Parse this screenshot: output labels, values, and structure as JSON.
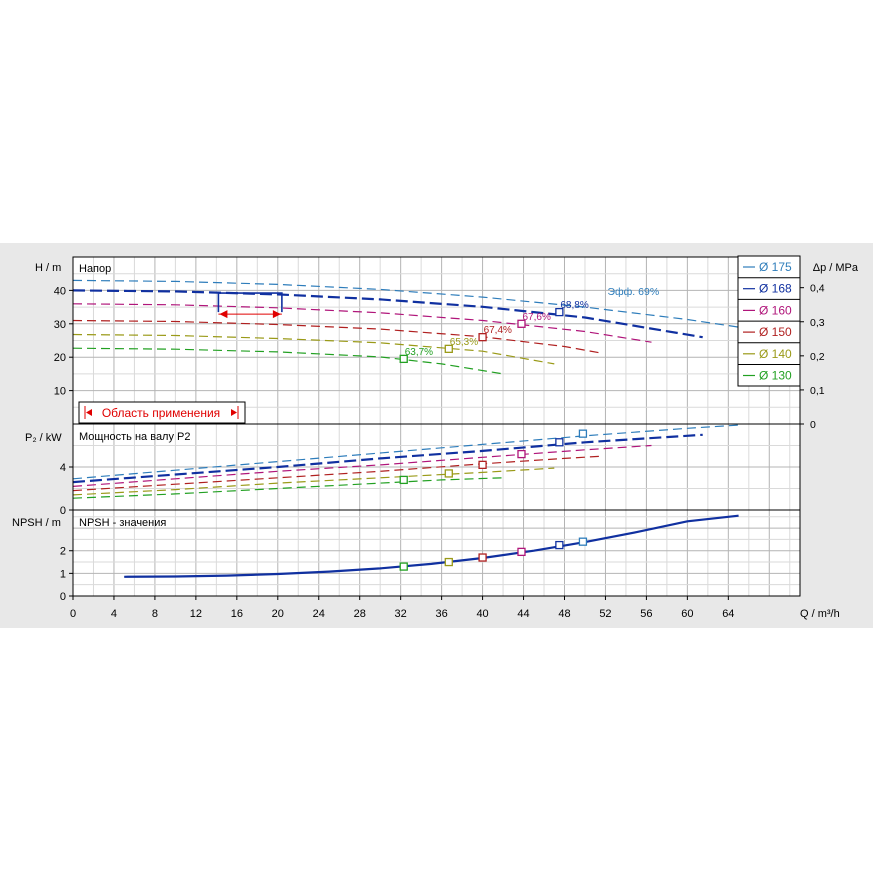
{
  "colors": {
    "background": "#e8e8e8",
    "plot_bg": "#ffffff",
    "grid": "#b4b4b4",
    "range": "#e00000"
  },
  "chart_data": [
    {
      "type": "line",
      "panel": "head",
      "title": "Напор",
      "ylabel": "H / m",
      "y2label": "Δp / MPa",
      "xlim": [
        0,
        71
      ],
      "ylim": [
        0,
        50
      ],
      "y2lim": [
        0,
        0.5
      ],
      "yticks": [
        10,
        20,
        30,
        40
      ],
      "y2ticks": [
        0,
        0.1,
        0.2,
        0.3,
        0.4
      ],
      "grid": true,
      "legend_position": "top-right",
      "eff_label": "Эфф.  69%",
      "range_label": "Область применения",
      "series": [
        {
          "name": "Ø 175",
          "color": "#2e7dbb",
          "x": [
            0,
            10,
            20,
            30,
            40,
            50,
            60,
            65
          ],
          "y": [
            43,
            42.7,
            41.8,
            40.3,
            38,
            35,
            31.3,
            29
          ]
        },
        {
          "name": "Ø 168",
          "color": "#1030a0",
          "x": [
            0,
            10,
            20,
            30,
            40,
            50,
            61.5
          ],
          "y": [
            40,
            39.7,
            38.8,
            37.3,
            35.1,
            31.9,
            26
          ]
        },
        {
          "name": "Ø 160",
          "color": "#b0157a",
          "x": [
            0,
            10,
            20,
            30,
            40,
            50,
            56.5
          ],
          "y": [
            36,
            35.7,
            34.8,
            33.3,
            31,
            27.7,
            24.5
          ]
        },
        {
          "name": "Ø 150",
          "color": "#b02020",
          "x": [
            0,
            10,
            20,
            30,
            40,
            48,
            51.5
          ],
          "y": [
            31,
            30.7,
            29.8,
            28.4,
            26.1,
            23.2,
            21.3
          ]
        },
        {
          "name": "Ø 140",
          "color": "#9a9a18",
          "x": [
            0,
            10,
            20,
            30,
            40,
            47
          ],
          "y": [
            26.8,
            26.5,
            25.6,
            24.3,
            21.8,
            18
          ]
        },
        {
          "name": "Ø 130",
          "color": "#22a022",
          "x": [
            0,
            10,
            20,
            30,
            36,
            42
          ],
          "y": [
            22.7,
            22.4,
            21.6,
            20.1,
            18,
            15
          ]
        }
      ],
      "op_points": [
        {
          "label": "63,7%",
          "x": 32.3,
          "y": 19.5,
          "color": "#22a022"
        },
        {
          "label": "65,3%",
          "x": 36.7,
          "y": 22.5,
          "color": "#9a9a18"
        },
        {
          "label": "67,4%",
          "x": 40,
          "y": 26,
          "color": "#b02020"
        },
        {
          "label": "67,6%",
          "x": 43.8,
          "y": 30,
          "color": "#b0157a"
        },
        {
          "label": "68,8%",
          "x": 47.5,
          "y": 33.5,
          "color": "#1030a0"
        }
      ]
    },
    {
      "type": "line",
      "panel": "power",
      "title": "Мощность на валу P2",
      "ylabel": "P₂ / kW",
      "ylim": [
        0,
        8
      ],
      "yticks": [
        0,
        4
      ],
      "grid": true,
      "series": [
        {
          "name": "Ø 175",
          "color": "#2e7dbb",
          "x": [
            0,
            10,
            20,
            30,
            40,
            50,
            60,
            65
          ],
          "y": [
            2.9,
            3.7,
            4.5,
            5.3,
            6.1,
            6.9,
            7.6,
            7.9
          ]
        },
        {
          "name": "Ø 168",
          "color": "#1030a0",
          "x": [
            0,
            10,
            20,
            30,
            40,
            50,
            61.5
          ],
          "y": [
            2.6,
            3.3,
            4,
            4.8,
            5.5,
            6.3,
            7
          ]
        },
        {
          "name": "Ø 160",
          "color": "#b0157a",
          "x": [
            0,
            10,
            20,
            30,
            40,
            50,
            56.5
          ],
          "y": [
            2.2,
            2.9,
            3.6,
            4.2,
            4.9,
            5.6,
            6
          ]
        },
        {
          "name": "Ø 150",
          "color": "#b02020",
          "x": [
            0,
            10,
            20,
            30,
            40,
            48,
            51.5
          ],
          "y": [
            1.8,
            2.4,
            3,
            3.6,
            4.3,
            4.8,
            5
          ]
        },
        {
          "name": "Ø 140",
          "color": "#9a9a18",
          "x": [
            0,
            10,
            20,
            30,
            40,
            47
          ],
          "y": [
            1.4,
            1.9,
            2.5,
            3,
            3.5,
            3.9
          ]
        },
        {
          "name": "Ø 130",
          "color": "#22a022",
          "x": [
            0,
            10,
            20,
            30,
            36,
            42
          ],
          "y": [
            1.1,
            1.5,
            2,
            2.5,
            2.8,
            3
          ]
        }
      ],
      "op_points": [
        {
          "x": 32.3,
          "y": 2.8,
          "color": "#22a022"
        },
        {
          "x": 36.7,
          "y": 3.4,
          "color": "#9a9a18"
        },
        {
          "x": 40,
          "y": 4.2,
          "color": "#b02020"
        },
        {
          "x": 43.8,
          "y": 5.2,
          "color": "#b0157a"
        },
        {
          "x": 47.5,
          "y": 6.3,
          "color": "#1030a0"
        },
        {
          "x": 49.8,
          "y": 7.1,
          "color": "#2e7dbb"
        }
      ]
    },
    {
      "type": "line",
      "panel": "npsh",
      "title": "NPSH - значения",
      "ylabel": "NPSH / m",
      "xlabel": "Q / m³/h",
      "ylim": [
        0,
        3.8
      ],
      "yticks": [
        0,
        1,
        2
      ],
      "xticks": [
        0,
        4,
        8,
        12,
        16,
        20,
        24,
        28,
        32,
        36,
        40,
        44,
        48,
        52,
        56,
        60,
        64
      ],
      "grid": true,
      "series": [
        {
          "name": "NPSH",
          "color": "#1030a0",
          "x": [
            5,
            10,
            15,
            20,
            25,
            30,
            35,
            40,
            45,
            50,
            55,
            60,
            65
          ],
          "y": [
            0.85,
            0.86,
            0.9,
            0.97,
            1.08,
            1.22,
            1.42,
            1.68,
            2,
            2.38,
            2.82,
            3.3,
            3.55
          ]
        }
      ],
      "op_points": [
        {
          "x": 32.3,
          "y": 1.3,
          "color": "#22a022"
        },
        {
          "x": 36.7,
          "y": 1.5,
          "color": "#9a9a18"
        },
        {
          "x": 40,
          "y": 1.7,
          "color": "#b02020"
        },
        {
          "x": 43.8,
          "y": 1.95,
          "color": "#b0157a"
        },
        {
          "x": 47.5,
          "y": 2.25,
          "color": "#1030a0"
        },
        {
          "x": 49.8,
          "y": 2.4,
          "color": "#2e7dbb"
        }
      ]
    }
  ]
}
